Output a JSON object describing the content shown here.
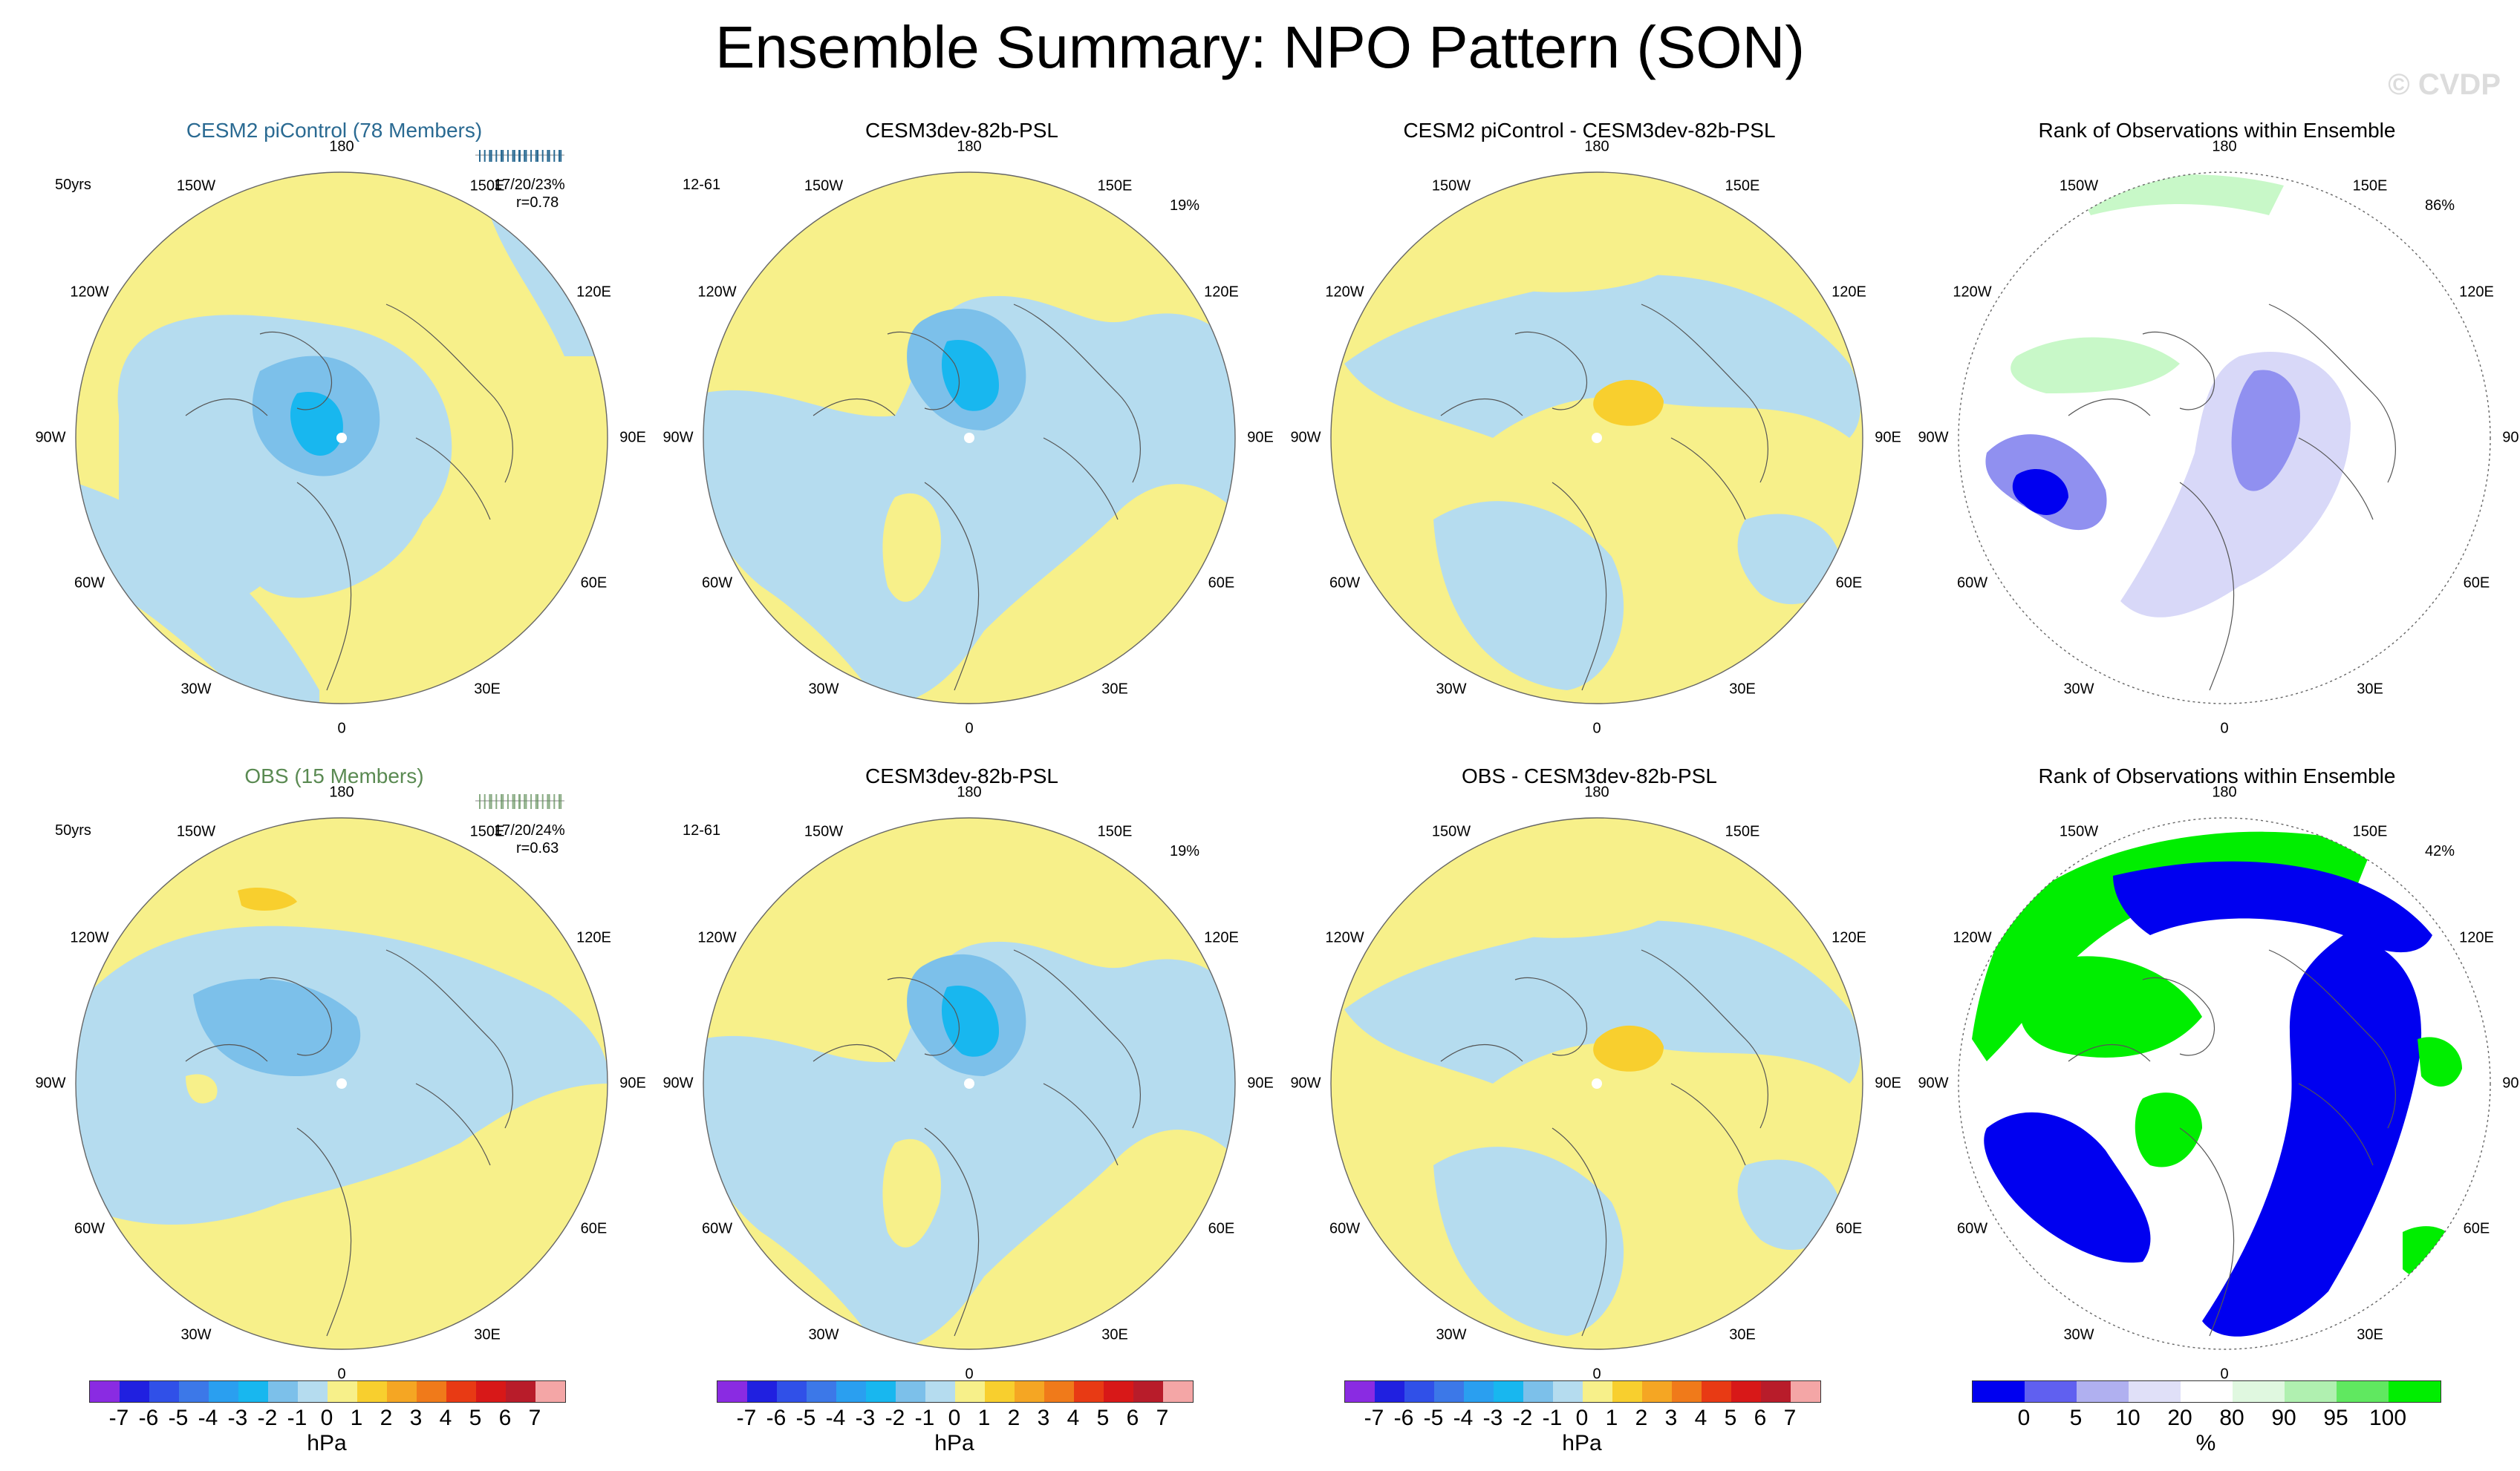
{
  "title": "Ensemble Summary: NPO Pattern (SON)",
  "copyright": "© CVDP",
  "colors": {
    "pos1": "#f7f08a",
    "pos2": "#f8cf2e",
    "neg1": "#b5dcef",
    "neg2": "#7cc0ea",
    "neg3": "#18b7ef",
    "rank_low": "#0000f0",
    "rank_mid": "#9090f0",
    "rank_pale": "#d8d8f8",
    "rank_high": "#00ee00",
    "rank_hpale": "#c8f8c8"
  },
  "longitude_labels": [
    "180",
    "150E",
    "120E",
    "90E",
    "60E",
    "30E",
    "0",
    "30W",
    "60W",
    "90W",
    "120W",
    "150W"
  ],
  "panels": [
    {
      "title": "CESM2 piControl (78 Members)",
      "title_color": "#2a6a92",
      "left": "50yrs",
      "right": "",
      "info1": "17/20/23%",
      "info2": "r=0.78",
      "type": "psl"
    },
    {
      "title": "CESM3dev-82b-PSL",
      "title_color": "#000000",
      "left": "12-61",
      "right": "19%",
      "info1": "",
      "info2": "",
      "type": "psl"
    },
    {
      "title": "CESM2 piControl - CESM3dev-82b-PSL",
      "title_color": "#000000",
      "left": "",
      "right": "",
      "info1": "",
      "info2": "",
      "type": "diff"
    },
    {
      "title": "Rank of Observations within Ensemble",
      "title_color": "#000000",
      "left": "",
      "right": "86%",
      "info1": "",
      "info2": "",
      "type": "rank"
    },
    {
      "title": "OBS (15 Members)",
      "title_color": "#5a8a52",
      "left": "50yrs",
      "right": "",
      "info1": "17/20/24%",
      "info2": "r=0.63",
      "type": "psl"
    },
    {
      "title": "CESM3dev-82b-PSL",
      "title_color": "#000000",
      "left": "12-61",
      "right": "19%",
      "info1": "",
      "info2": "",
      "type": "psl"
    },
    {
      "title": "OBS - CESM3dev-82b-PSL",
      "title_color": "#000000",
      "left": "",
      "right": "",
      "info1": "",
      "info2": "",
      "type": "diff"
    },
    {
      "title": "Rank of Observations within Ensemble",
      "title_color": "#000000",
      "left": "",
      "right": "42%",
      "info1": "",
      "info2": "",
      "type": "rank"
    }
  ],
  "colorbar_psl": {
    "ticks": [
      "-7",
      "-6",
      "-5",
      "-4",
      "-3",
      "-2",
      "-1",
      "0",
      "1",
      "2",
      "3",
      "4",
      "5",
      "6",
      "7"
    ],
    "unit": "hPa",
    "colors": [
      "#8a2be2",
      "#2020e0",
      "#3050e8",
      "#3c78e8",
      "#2a9ff0",
      "#18b7ef",
      "#7cc0ea",
      "#b5dcef",
      "#f7f08a",
      "#f8cf2e",
      "#f5a623",
      "#f07a1a",
      "#e83a14",
      "#d81818",
      "#b81c2a",
      "#f4a6a6"
    ]
  },
  "colorbar_rank": {
    "ticks": [
      "0",
      "5",
      "10",
      "20",
      "80",
      "90",
      "95",
      "100"
    ],
    "unit": "%",
    "colors": [
      "#0000f0",
      "#6060f0",
      "#b0b0f0",
      "#e0e0f8",
      "#ffffff",
      "#e0f8e0",
      "#b0f0b0",
      "#60e860",
      "#00ee00"
    ]
  }
}
